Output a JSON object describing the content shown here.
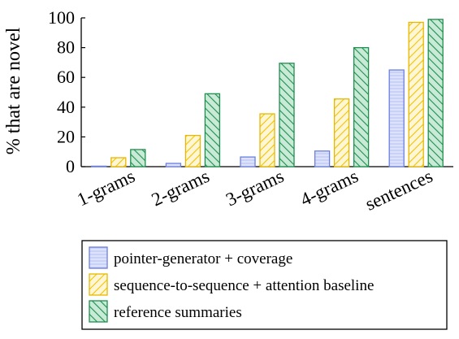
{
  "chart_data": {
    "type": "bar",
    "categories": [
      "1-grams",
      "2-grams",
      "3-grams",
      "4-grams",
      "sentences"
    ],
    "series": [
      {
        "name": "pointer-generator + coverage",
        "values": [
          0.1,
          2.2,
          6.5,
          10.5,
          65
        ],
        "color": "#6b7fe0",
        "fill": "#dde2fb",
        "pattern": "horizontal-lines"
      },
      {
        "name": "sequence-to-sequence + attention baseline",
        "values": [
          6.0,
          21,
          35.5,
          45.5,
          97
        ],
        "color": "#e6b800",
        "fill": "#fff3c4",
        "pattern": "diagonal-lines"
      },
      {
        "name": "reference summaries",
        "values": [
          11.5,
          49,
          69.5,
          80,
          99
        ],
        "color": "#1f8f4e",
        "fill": "#b8e3c8",
        "pattern": "diagonal-lines"
      }
    ],
    "ylabel": "% that are novel",
    "xlabel": "",
    "ylim": [
      0,
      100
    ],
    "yticks": [
      "0",
      "20",
      "40",
      "60",
      "80",
      "100"
    ],
    "ytick_values": [
      0,
      20,
      40,
      60,
      80,
      100
    ],
    "legend_position": "bottom",
    "grid": false
  }
}
